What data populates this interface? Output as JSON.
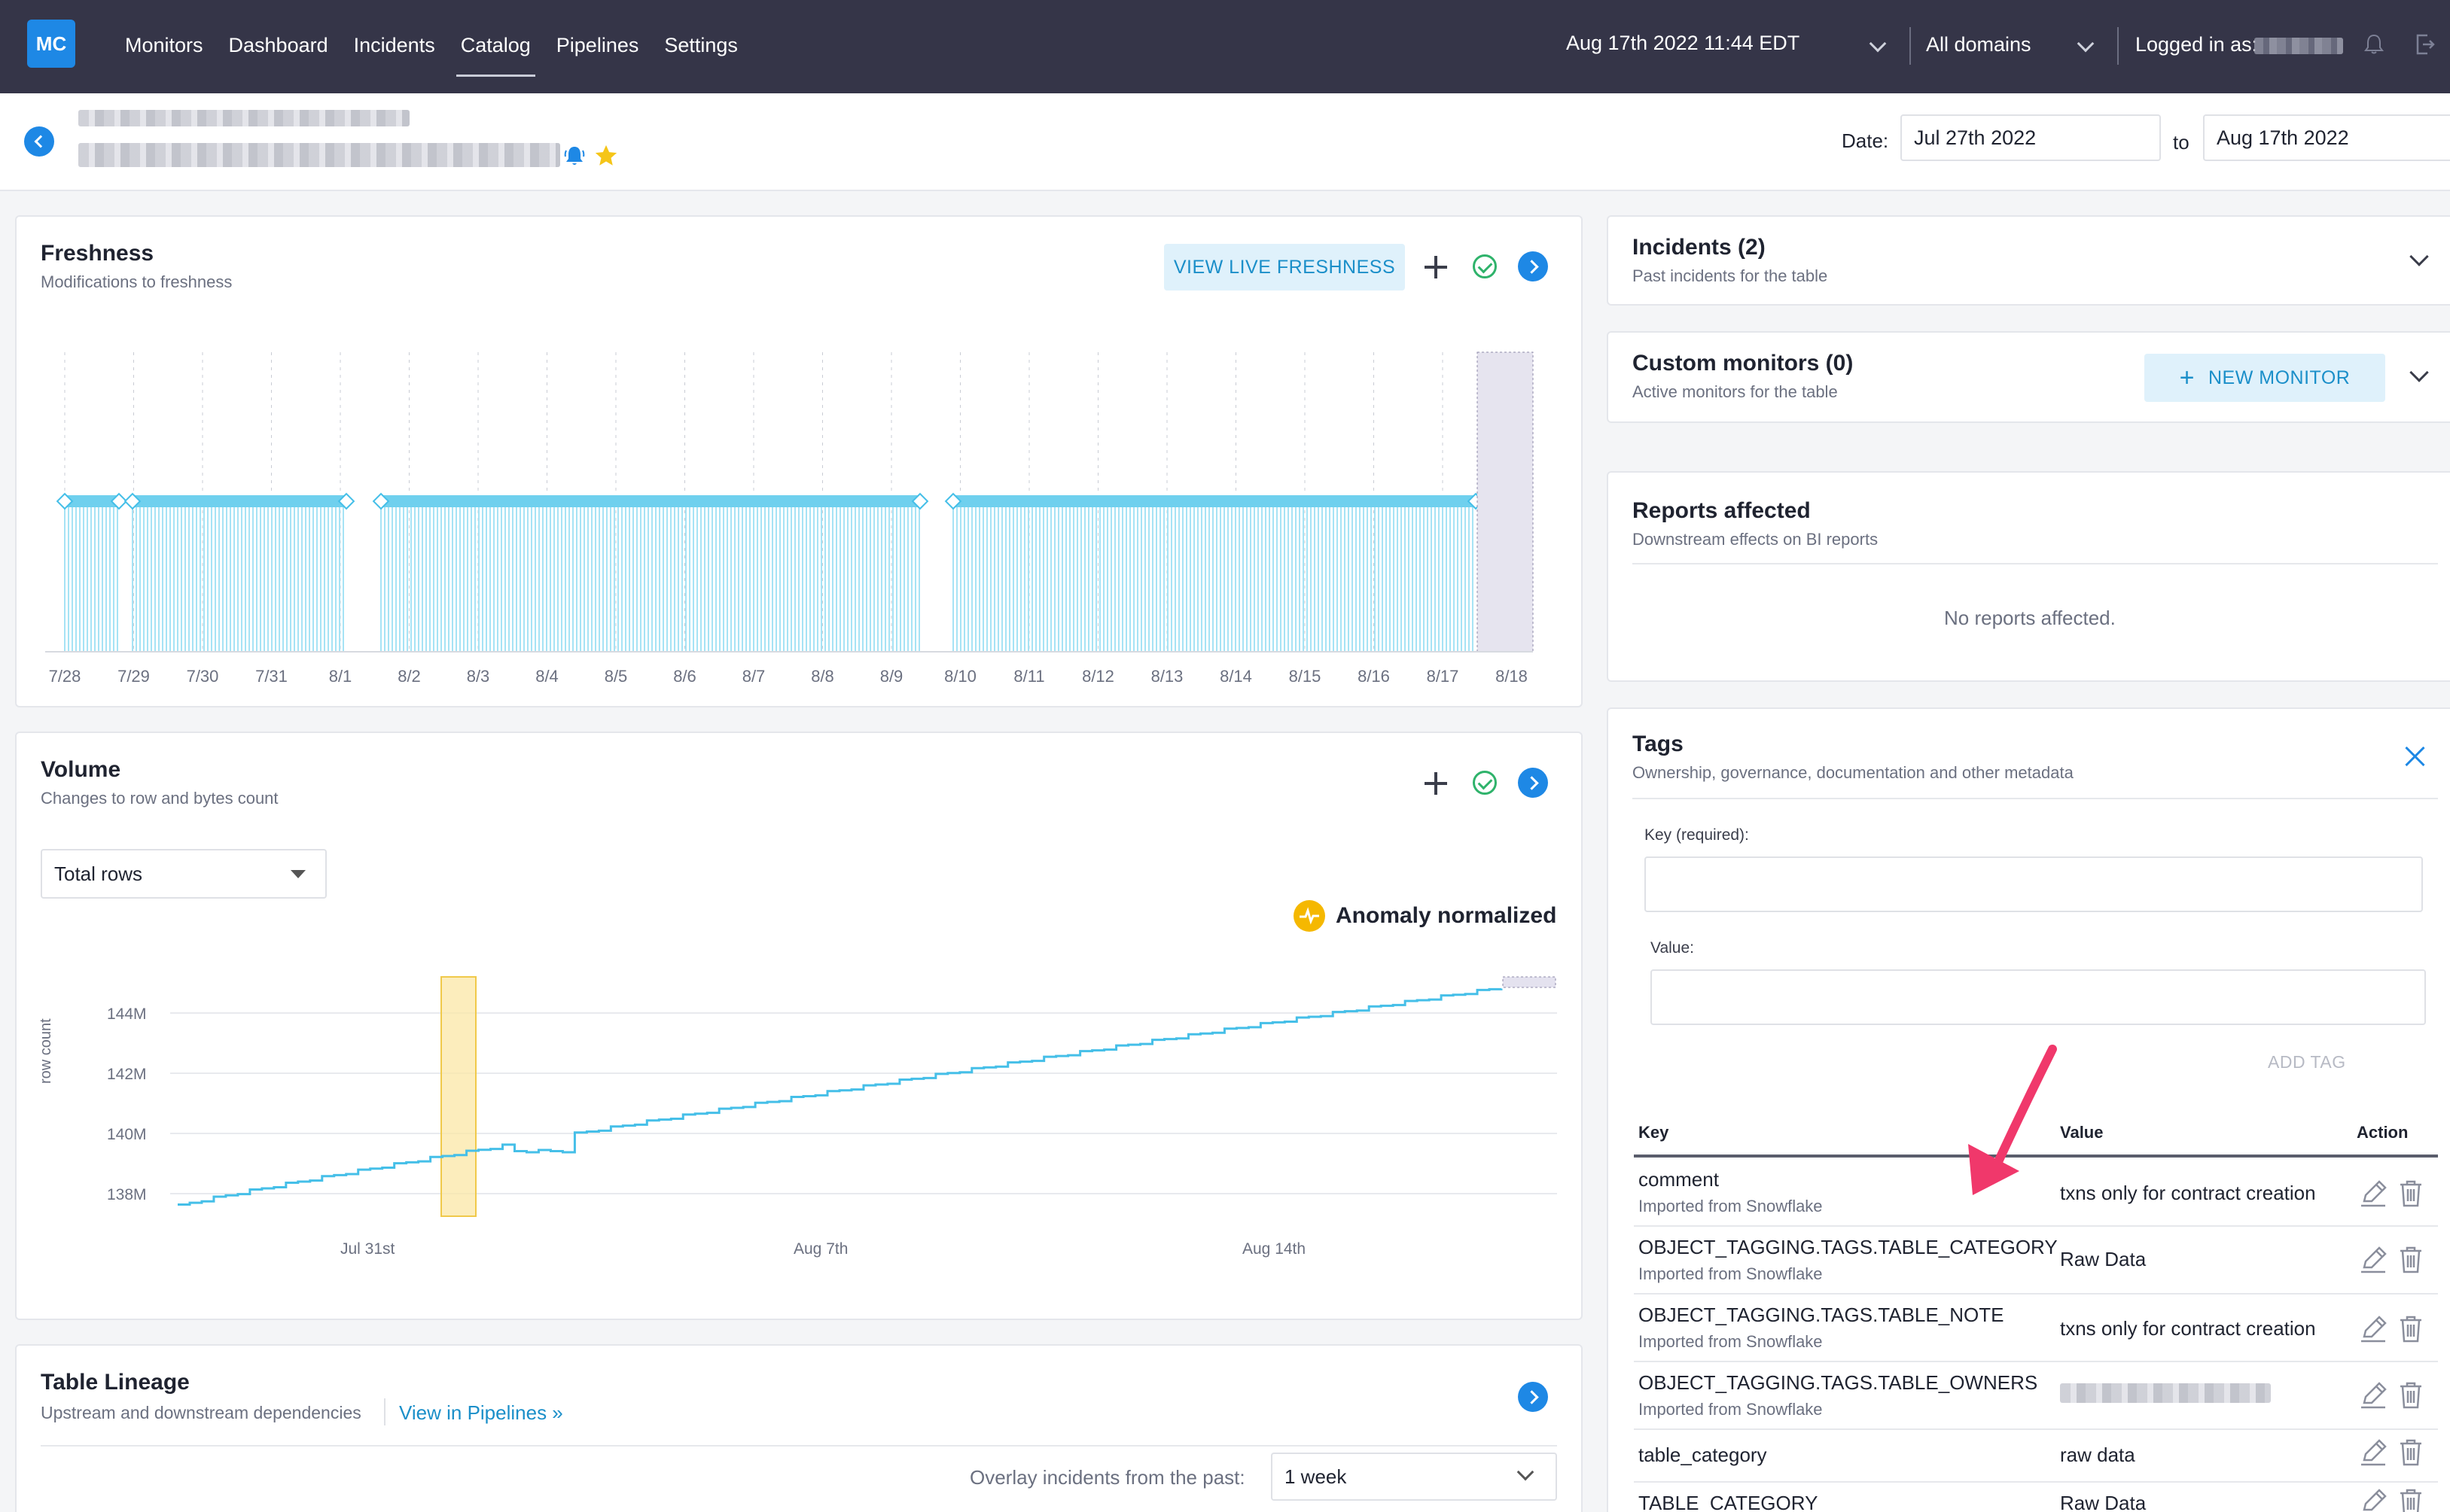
{
  "nav": {
    "logo": "MC",
    "items": [
      "Monitors",
      "Dashboard",
      "Incidents",
      "Catalog",
      "Pipelines",
      "Settings"
    ],
    "active": "Catalog",
    "datetime": "Aug 17th 2022 11:44 EDT",
    "domains": "All domains",
    "logged_in_label": "Logged in as:"
  },
  "header": {
    "date_label": "Date:",
    "date_from": "Jul 27th 2022",
    "date_to_label": "to",
    "date_to": "Aug 17th 2022"
  },
  "freshness": {
    "title": "Freshness",
    "subtitle": "Modifications to freshness",
    "view_button": "VIEW LIVE FRESHNESS",
    "x_ticks": [
      "7/28",
      "7/29",
      "7/30",
      "7/31",
      "8/1",
      "8/2",
      "8/3",
      "8/4",
      "8/5",
      "8/6",
      "8/7",
      "8/8",
      "8/9",
      "8/10",
      "8/11",
      "8/12",
      "8/13",
      "8/14",
      "8/15",
      "8/16",
      "8/17",
      "8/18"
    ]
  },
  "volume": {
    "title": "Volume",
    "subtitle": "Changes to row and bytes count",
    "metric_select": "Total rows",
    "anomaly_label": "Anomaly normalized",
    "y_axis_label": "row count",
    "y_ticks": [
      "144M",
      "142M",
      "140M",
      "138M"
    ],
    "x_ticks": [
      "Jul 31st",
      "Aug 7th",
      "Aug 14th"
    ]
  },
  "lineage": {
    "title": "Table Lineage",
    "subtitle": "Upstream and downstream dependencies",
    "link": "View in Pipelines »",
    "overlay_label": "Overlay incidents from the past:",
    "overlay_value": "1 week"
  },
  "incidents": {
    "title": "Incidents (2)",
    "subtitle": "Past incidents for the table"
  },
  "custom_monitors": {
    "title": "Custom monitors (0)",
    "subtitle": "Active monitors for the table",
    "button": "NEW MONITOR"
  },
  "reports": {
    "title": "Reports affected",
    "subtitle": "Downstream effects on BI reports",
    "empty": "No reports affected."
  },
  "tags": {
    "title": "Tags",
    "subtitle": "Ownership, governance, documentation and other metadata",
    "key_label": "Key (required):",
    "value_label": "Value:",
    "add_button": "ADD TAG",
    "columns": {
      "key": "Key",
      "value": "Value",
      "action": "Action"
    },
    "rows": [
      {
        "key": "comment",
        "source": "Imported from Snowflake",
        "value": "txns only for contract creation"
      },
      {
        "key": "OBJECT_TAGGING.TAGS.TABLE_CATEGORY",
        "source": "Imported from Snowflake",
        "value": "Raw Data"
      },
      {
        "key": "OBJECT_TAGGING.TAGS.TABLE_NOTE",
        "source": "Imported from Snowflake",
        "value": "txns only for contract creation"
      },
      {
        "key": "OBJECT_TAGGING.TAGS.TABLE_OWNERS",
        "source": "Imported from Snowflake",
        "value": ""
      },
      {
        "key": "table_category",
        "source": "",
        "value": "raw data"
      },
      {
        "key": "TABLE_CATEGORY",
        "source": "",
        "value": "Raw Data"
      }
    ]
  },
  "colors": {
    "accent": "#1e88e5",
    "nav_bg": "#353548",
    "chart_line": "#45bfe8",
    "anomaly": "#f5b800",
    "annotation_arrow": "#f0386b"
  }
}
